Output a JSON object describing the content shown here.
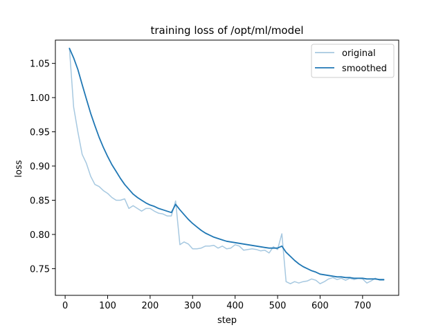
{
  "chart_data": {
    "type": "line",
    "title": "training loss of /opt/ml/model",
    "xlabel": "step",
    "ylabel": "loss",
    "xlim": [
      -23,
      785
    ],
    "ylim": [
      0.711,
      1.084
    ],
    "x_ticks": [
      0,
      100,
      200,
      300,
      400,
      500,
      600,
      700
    ],
    "y_ticks": [
      0.75,
      0.8,
      0.85,
      0.9,
      0.95,
      1.0,
      1.05
    ],
    "grid": false,
    "legend": "top-right",
    "colors": {
      "original": "#a6c8e0",
      "smoothed": "#1f77b4"
    },
    "series": [
      {
        "name": "original",
        "x": [
          10,
          20,
          30,
          40,
          50,
          60,
          70,
          80,
          90,
          100,
          110,
          120,
          130,
          140,
          150,
          160,
          170,
          180,
          190,
          200,
          210,
          220,
          230,
          240,
          250,
          260,
          270,
          280,
          290,
          300,
          310,
          320,
          330,
          340,
          350,
          360,
          370,
          380,
          390,
          400,
          410,
          420,
          430,
          440,
          450,
          460,
          470,
          480,
          490,
          500,
          510,
          520,
          530,
          540,
          550,
          560,
          570,
          580,
          590,
          600,
          610,
          620,
          630,
          640,
          650,
          660,
          670,
          680,
          690,
          700,
          710,
          720,
          730,
          740,
          750
        ],
        "values": [
          1.072,
          0.986,
          0.95,
          0.917,
          0.904,
          0.885,
          0.873,
          0.87,
          0.864,
          0.86,
          0.854,
          0.85,
          0.85,
          0.852,
          0.838,
          0.842,
          0.838,
          0.834,
          0.838,
          0.838,
          0.834,
          0.831,
          0.83,
          0.827,
          0.827,
          0.849,
          0.785,
          0.789,
          0.786,
          0.779,
          0.779,
          0.78,
          0.783,
          0.783,
          0.784,
          0.78,
          0.783,
          0.779,
          0.78,
          0.785,
          0.783,
          0.777,
          0.778,
          0.779,
          0.778,
          0.776,
          0.777,
          0.773,
          0.782,
          0.778,
          0.801,
          0.731,
          0.728,
          0.731,
          0.729,
          0.731,
          0.732,
          0.735,
          0.733,
          0.728,
          0.731,
          0.735,
          0.737,
          0.734,
          0.736,
          0.733,
          0.736,
          0.734,
          0.736,
          0.735,
          0.729,
          0.732,
          0.736,
          0.733,
          0.733
        ]
      },
      {
        "name": "smoothed",
        "x": [
          10,
          20,
          30,
          40,
          50,
          60,
          70,
          80,
          90,
          100,
          110,
          120,
          130,
          140,
          150,
          160,
          170,
          180,
          190,
          200,
          210,
          220,
          230,
          240,
          250,
          260,
          270,
          280,
          290,
          300,
          310,
          320,
          330,
          340,
          350,
          360,
          370,
          380,
          390,
          400,
          410,
          420,
          430,
          440,
          450,
          460,
          470,
          480,
          490,
          500,
          510,
          520,
          530,
          540,
          550,
          560,
          570,
          580,
          590,
          600,
          610,
          620,
          630,
          640,
          650,
          660,
          670,
          680,
          690,
          700,
          710,
          720,
          730,
          740,
          750
        ],
        "values": [
          1.072,
          1.058,
          1.041,
          1.019,
          0.998,
          0.977,
          0.959,
          0.942,
          0.927,
          0.914,
          0.902,
          0.892,
          0.882,
          0.873,
          0.866,
          0.859,
          0.854,
          0.85,
          0.846,
          0.843,
          0.841,
          0.838,
          0.836,
          0.834,
          0.832,
          0.844,
          0.836,
          0.829,
          0.822,
          0.816,
          0.811,
          0.806,
          0.802,
          0.799,
          0.796,
          0.794,
          0.792,
          0.79,
          0.789,
          0.788,
          0.787,
          0.786,
          0.785,
          0.784,
          0.783,
          0.782,
          0.781,
          0.78,
          0.78,
          0.78,
          0.783,
          0.774,
          0.768,
          0.762,
          0.757,
          0.753,
          0.75,
          0.747,
          0.745,
          0.742,
          0.741,
          0.74,
          0.739,
          0.738,
          0.738,
          0.737,
          0.737,
          0.736,
          0.736,
          0.736,
          0.735,
          0.735,
          0.735,
          0.734,
          0.734
        ]
      }
    ]
  }
}
